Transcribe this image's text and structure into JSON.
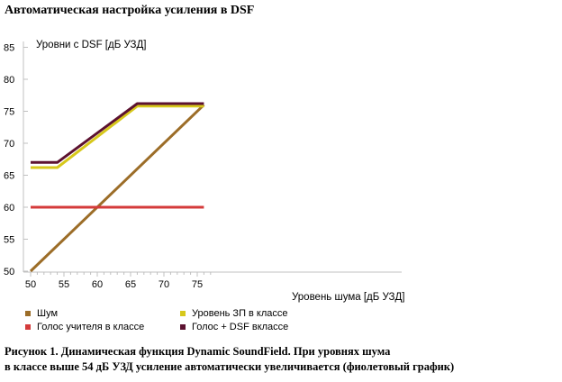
{
  "header": {
    "title": "Автоматическая настройка усиления в DSF"
  },
  "caption": {
    "line1": "Рисунок 1. Динамическая функция Dynamic SoundField. При уровнях шума",
    "line2": "в классе выше 54 дБ УЗД усиление автоматически увеличивается (фиолетовый график)"
  },
  "chart_data": {
    "type": "line",
    "ylabel": "Уровни с DSF [дБ УЗД]",
    "xlabel": "Уровень шума [дБ УЗД]",
    "xlim": [
      50,
      78
    ],
    "ylim": [
      50,
      86
    ],
    "xticks": [
      "50",
      "55",
      "60",
      "65",
      "70",
      "75"
    ],
    "yticks": [
      "50",
      "55",
      "60",
      "65",
      "70",
      "75",
      "80",
      "85"
    ],
    "grid": false,
    "legend_position": "bottom",
    "series": [
      {
        "name": "Шум",
        "color": "#9c6d28",
        "x": [
          50,
          76
        ],
        "y": [
          50,
          76
        ]
      },
      {
        "name": "Уровень ЗП в классе",
        "color": "#d7c81b",
        "x": [
          50,
          54,
          66,
          76
        ],
        "y": [
          66.2,
          66.2,
          75.8,
          75.8
        ]
      },
      {
        "name": "Голос учителя в классе",
        "color": "#d43b3b",
        "x": [
          50,
          76
        ],
        "y": [
          60,
          60
        ]
      },
      {
        "name": "Голос + DSF вклассе",
        "color": "#5c1230",
        "x": [
          50,
          54,
          66,
          76
        ],
        "y": [
          67,
          67,
          76.2,
          76.2
        ]
      }
    ]
  }
}
